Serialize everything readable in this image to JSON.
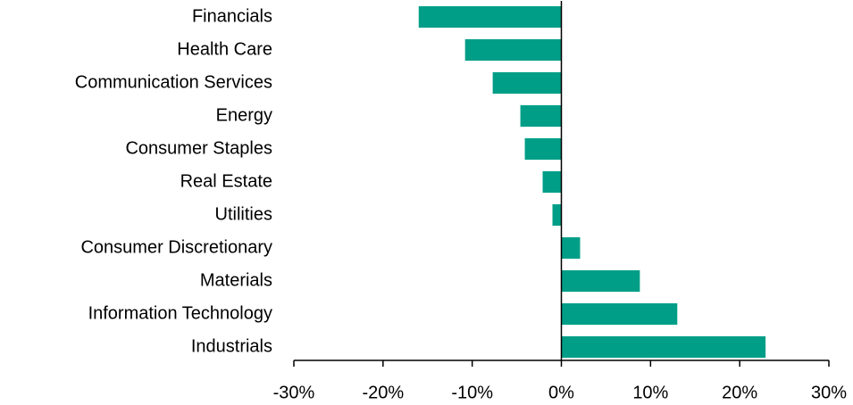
{
  "chart_data": {
    "type": "bar",
    "orientation": "horizontal",
    "categories": [
      "Financials",
      "Health Care",
      "Communication Services",
      "Energy",
      "Consumer Staples",
      "Real Estate",
      "Utilities",
      "Consumer Discretionary",
      "Materials",
      "Information Technology",
      "Industrials"
    ],
    "values": [
      -16,
      -10.8,
      -7.7,
      -4.6,
      -4.1,
      -2.1,
      -1.0,
      2.1,
      8.8,
      13.0,
      22.9
    ],
    "color": "#009e87",
    "xlim": [
      -30,
      30
    ],
    "xticks": [
      {
        "value": -30,
        "label": "-30%"
      },
      {
        "value": -20,
        "label": "-20%"
      },
      {
        "value": -10,
        "label": "-10%"
      },
      {
        "value": 0,
        "label": "0%"
      },
      {
        "value": 10,
        "label": "10%"
      },
      {
        "value": 20,
        "label": "20%"
      },
      {
        "value": 30,
        "label": "30%"
      }
    ]
  }
}
